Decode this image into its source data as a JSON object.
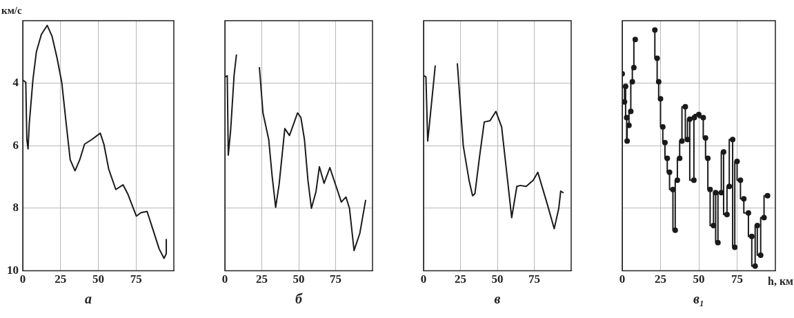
{
  "chart_data": [
    {
      "type": "line",
      "title": "а",
      "ylabel": "км/с",
      "xlim": [
        0,
        100
      ],
      "xticks": [
        0,
        25,
        50,
        75
      ],
      "ylim": [
        10,
        2
      ],
      "yticks": [
        4,
        6,
        8,
        10
      ],
      "grid": true,
      "legend": false,
      "marker": "none",
      "line_style": "solid",
      "series": [
        {
          "color": "#1a1a1a",
          "x": [
            0,
            2,
            2.7,
            3.5,
            4.3,
            6.7,
            9,
            12.3,
            16.2,
            19.4,
            22.6,
            25.8,
            29,
            31.4,
            34.6,
            37.7,
            40.9,
            45.7,
            51.3,
            53.7,
            56.9,
            61.6,
            66.4,
            69.6,
            75.2,
            78.3,
            82.3,
            86.3,
            90.3,
            93.5,
            95,
            95
          ],
          "values": [
            3.9,
            3.97,
            5.8,
            6.1,
            5.3,
            3.9,
            3.0,
            2.44,
            2.15,
            2.5,
            3.17,
            3.97,
            5.4,
            6.45,
            6.8,
            6.45,
            5.95,
            5.8,
            5.6,
            5.95,
            6.75,
            7.4,
            7.25,
            7.55,
            8.25,
            8.14,
            8.1,
            8.7,
            9.3,
            9.6,
            9.45,
            9.0
          ]
        }
      ]
    },
    {
      "type": "line",
      "title": "б",
      "xlim": [
        0,
        100
      ],
      "xticks": [
        0,
        25,
        50,
        75
      ],
      "ylim": [
        10,
        2
      ],
      "yticks": [
        4,
        6,
        8,
        10
      ],
      "grid": true,
      "legend": false,
      "marker": "none",
      "line_style": "solid",
      "tick_labels": "x",
      "series": [
        {
          "color": "#1a1a1a",
          "x": [
            0,
            1.6,
            2.3,
            3.9,
            6.25,
            7.8,
            10.2,
            20.3,
            23.4,
            25.8,
            29.7,
            32,
            34.4,
            36.7,
            40.6,
            43.75,
            46,
            49.2,
            51.5,
            53.9,
            56.25,
            58.6,
            61.7,
            64,
            67.2,
            71.1,
            75,
            78.9,
            82,
            84.4,
            87.5,
            91.4,
            95.3
          ],
          "values": [
            3.8,
            3.76,
            6.3,
            5.5,
            3.74,
            3.1,
            null,
            null,
            3.5,
            4.95,
            5.8,
            6.97,
            7.97,
            7.25,
            5.45,
            5.67,
            5.38,
            4.95,
            5.1,
            5.8,
            7.1,
            8.0,
            7.47,
            6.67,
            7.2,
            6.7,
            7.25,
            7.8,
            7.64,
            8.0,
            9.35,
            8.8,
            7.75
          ]
        }
      ]
    },
    {
      "type": "line",
      "title": "в",
      "xlim": [
        0,
        100
      ],
      "xticks": [
        0,
        25,
        50,
        75
      ],
      "ylim": [
        10,
        2
      ],
      "yticks": [
        4,
        6,
        8,
        10
      ],
      "grid": true,
      "legend": false,
      "marker": "none",
      "line_style": "solid",
      "tick_labels": "x",
      "series": [
        {
          "color": "#1a1a1a",
          "x": [
            0,
            1.6,
            2.8,
            3.9,
            7.9,
            11,
            20.5,
            22.9,
            26.9,
            30.8,
            33.2,
            34.8,
            37.9,
            41.1,
            45,
            49,
            52.9,
            56.9,
            59.7,
            63.2,
            65.6,
            69.5,
            74.3,
            77.4,
            83.7,
            88.5,
            91.6,
            92.9,
            94.5
          ],
          "values": [
            3.75,
            3.8,
            5.85,
            5.35,
            3.45,
            null,
            null,
            3.38,
            6.0,
            7.1,
            7.6,
            7.53,
            6.36,
            5.24,
            5.2,
            4.9,
            5.4,
            7.1,
            8.3,
            7.3,
            7.27,
            7.3,
            7.1,
            6.85,
            7.85,
            8.65,
            8.0,
            7.45,
            7.5
          ]
        }
      ]
    },
    {
      "type": "step",
      "title": "в₁",
      "xlabel": "h, км",
      "xlim": [
        0,
        100
      ],
      "xticks": [
        0,
        25,
        50,
        75
      ],
      "ylim": [
        10,
        2
      ],
      "yticks": [
        4,
        6,
        8,
        10
      ],
      "grid": true,
      "legend": false,
      "marker": "circle",
      "line_style": "solid",
      "tick_labels": "x",
      "series": [
        {
          "color": "#1a1a1a",
          "x": [
            0,
            1.5,
            2.2,
            2.9,
            3.2,
            4.4,
            5.6,
            6.6,
            7.6,
            8.5,
            10,
            20.6,
            21.3,
            22.8,
            23.8,
            25,
            26.5,
            27.9,
            29.4,
            30.9,
            33.1,
            34.6,
            36,
            37.5,
            39,
            41.2,
            42.6,
            44.1,
            46.8,
            47.1,
            50,
            52.9,
            54.4,
            55.9,
            57.4,
            59.6,
            61,
            62.5,
            64.7,
            66.2,
            68.4,
            69.9,
            72.1,
            73.5,
            75,
            77.2,
            79.4,
            82.4,
            84.6,
            86.8,
            88.2,
            90.4,
            92.6,
            94.9
          ],
          "values": [
            3.7,
            4.6,
            4.1,
            5.1,
            5.85,
            5.35,
            4.9,
            3.95,
            3.5,
            2.6,
            null,
            null,
            2.3,
            3.2,
            3.95,
            4.5,
            5.4,
            5.9,
            6.4,
            6.85,
            7.4,
            8.7,
            7.1,
            6.4,
            5.85,
            4.75,
            5.8,
            5.15,
            7.1,
            5.1,
            5.0,
            5.1,
            5.75,
            6.4,
            7.4,
            8.55,
            7.5,
            9.1,
            7.5,
            6.2,
            8.2,
            7.3,
            5.8,
            9.25,
            6.5,
            7.1,
            7.7,
            8.15,
            8.9,
            9.85,
            8.55,
            9.5,
            8.3,
            7.6
          ]
        }
      ]
    }
  ]
}
